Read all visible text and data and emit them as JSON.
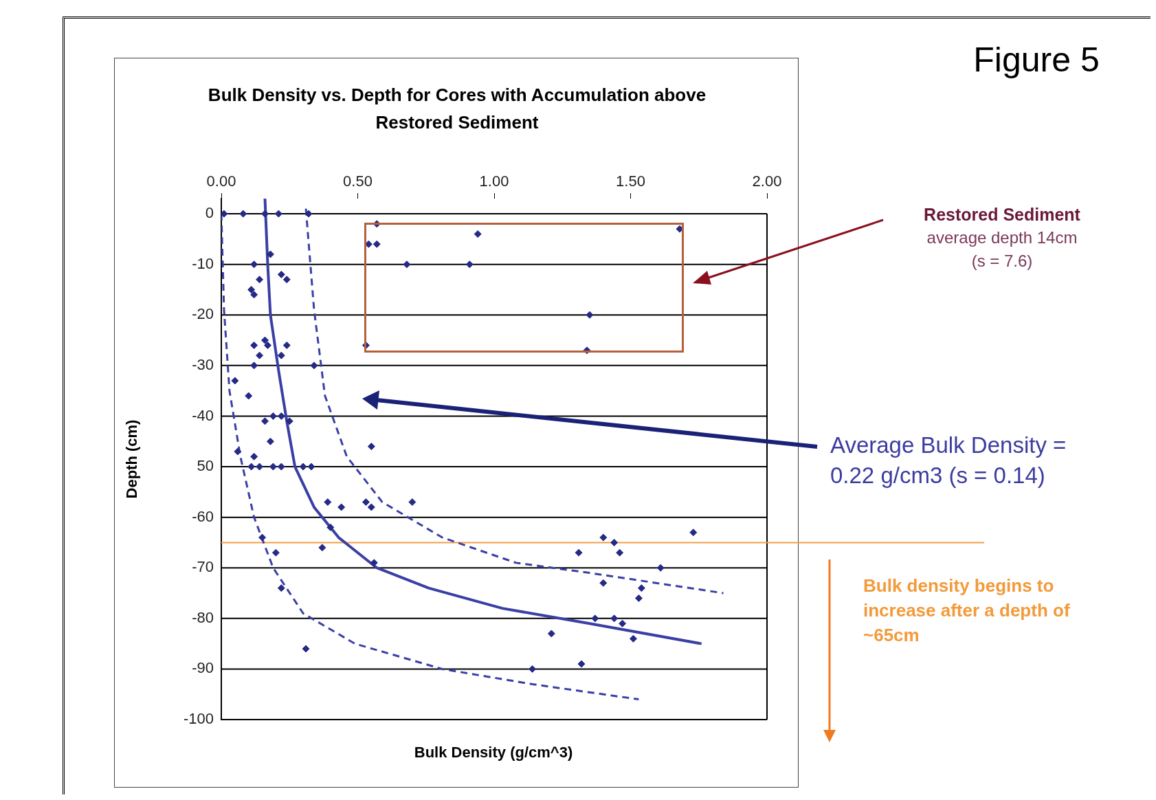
{
  "chart_data": {
    "type": "scatter",
    "title": "Bulk Density vs. Depth for Cores with Accumulation above Restored Sediment",
    "xlabel": "Bulk Density (g/cm^3)",
    "ylabel": "Depth (cm)",
    "xlim": [
      0,
      2
    ],
    "ylim": [
      -100,
      3
    ],
    "xticks": [
      {
        "value": 0,
        "label": "0.00"
      },
      {
        "value": 0.5,
        "label": "0.50"
      },
      {
        "value": 1,
        "label": "1.00"
      },
      {
        "value": 1.5,
        "label": "1.50"
      },
      {
        "value": 2,
        "label": "2.00"
      }
    ],
    "yticks": [
      0,
      -10,
      -20,
      -30,
      -40,
      {
        "value": -50,
        "label": "50"
      },
      -60,
      -70,
      -80,
      -90,
      -100
    ],
    "grid": "y",
    "legend": false,
    "series": [
      {
        "type": "scatter",
        "marker": "diamond",
        "color": "#252a85",
        "x": [
          0.01,
          0.08,
          0.16,
          0.21,
          0.32,
          0.57,
          0.54,
          0.57,
          0.68,
          0.94,
          0.91,
          1.68,
          1.35,
          1.34,
          0.53,
          0.18,
          0.12,
          0.22,
          0.24,
          0.14,
          0.11,
          0.12,
          0.12,
          0.16,
          0.17,
          0.24,
          0.14,
          0.22,
          0.12,
          0.34,
          0.05,
          0.1,
          0.16,
          0.19,
          0.25,
          0.22,
          0.18,
          0.55,
          0.06,
          0.12,
          0.11,
          0.14,
          0.19,
          0.22,
          0.3,
          0.33,
          0.39,
          0.44,
          0.53,
          0.55,
          0.7,
          0.4,
          0.15,
          0.37,
          0.2,
          0.56,
          0.22,
          0.31,
          1.4,
          1.44,
          1.73,
          1.31,
          1.46,
          1.61,
          1.4,
          1.54,
          1.53,
          1.37,
          1.44,
          1.47,
          1.21,
          1.51,
          1.32,
          1.14
        ],
        "values": [
          0,
          0,
          0,
          0,
          0,
          -2,
          -6,
          -6,
          -10,
          -4,
          -10,
          -3,
          -20,
          -27,
          -26,
          -8,
          -10,
          -12,
          -13,
          -13,
          -15,
          -16,
          -26,
          -25,
          -26,
          -26,
          -28,
          -28,
          -30,
          -30,
          -33,
          -36,
          -41,
          -40,
          -41,
          -40,
          -45,
          -46,
          -47,
          -48,
          -50,
          -50,
          -50,
          -50,
          -50,
          -50,
          -57,
          -58,
          -57,
          -58,
          -57,
          -62,
          -64,
          -66,
          -67,
          -69,
          -74,
          -86,
          -64,
          -65,
          -63,
          -67,
          -67,
          -70,
          -73,
          -74,
          -76,
          -80,
          -80,
          -81,
          -83,
          -84,
          -89,
          -90
        ]
      },
      {
        "type": "line",
        "marker": "none",
        "line_style": "solid",
        "color": "#3a3fa5",
        "x": [
          0.16,
          0.17,
          0.18,
          0.21,
          0.24,
          0.27,
          0.34,
          0.43,
          0.57,
          0.76,
          1.03,
          1.35,
          1.76
        ],
        "values": [
          3,
          -10,
          -20,
          -31,
          -41,
          -50,
          -58,
          -64,
          -70,
          -74,
          -78,
          -81,
          -85
        ]
      },
      {
        "type": "line",
        "marker": "none",
        "line_style": "dashed",
        "color": "#3a3fa5",
        "x": [
          0.31,
          0.34,
          0.38,
          0.46,
          0.59,
          0.81,
          1.08,
          1.35,
          1.84
        ],
        "values": [
          1,
          -19,
          -36,
          -48,
          -57,
          -64,
          -69,
          -71,
          -75
        ]
      },
      {
        "type": "line",
        "marker": "none",
        "line_style": "dashed",
        "color": "#3a3fa5",
        "x": [
          0,
          0.01,
          0.03,
          0.07,
          0.12,
          0.19,
          0.3,
          0.49,
          0.81,
          1.14,
          1.53
        ],
        "values": [
          0,
          -19,
          -35,
          -48,
          -60,
          -70,
          -79,
          -85,
          -90,
          -93,
          -96
        ]
      }
    ],
    "ref_lines": [
      {
        "axis": "y",
        "value": -65,
        "color": "#f0a04a"
      }
    ],
    "annotations": [
      "Figure 5",
      "Restored Sediment",
      "average depth 14cm",
      "(s = 7.6)",
      "Average Bulk Density = 0.22 g/cm3 (s = 0.14)",
      "Bulk density begins to increase after a depth of ~65cm"
    ]
  }
}
